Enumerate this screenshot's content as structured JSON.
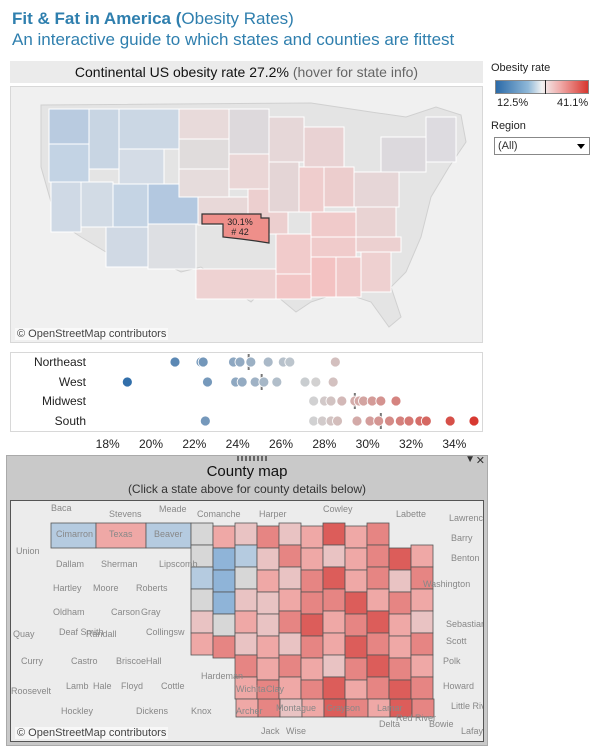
{
  "header": {
    "title_bold": "Fit & Fat in America (",
    "title_rest": "Obesity Rates)",
    "subtitle": "An interactive guide to which states and counties are fittest"
  },
  "banner": {
    "text": "Continental US obesity rate 27.2%",
    "hint": "(hover for state info)"
  },
  "us_map": {
    "tooltip_rate": "30.1%",
    "tooltip_rank": "# 42",
    "credit": "© OpenStreetMap contributors"
  },
  "legend": {
    "title": "Obesity rate",
    "min": "12.5%",
    "max": "41.1%"
  },
  "region_filter": {
    "label": "Region",
    "selected": "(All)"
  },
  "colors": {
    "low": "#2b6aa8",
    "mid": "#d8d8d8",
    "high": "#d7372f",
    "accent": "#2f7fae"
  },
  "chart_data": {
    "type": "scatter",
    "categories": [
      "Northeast",
      "West",
      "Midwest",
      "South"
    ],
    "xlim": [
      17,
      35
    ],
    "x_ticks": [
      "18%",
      "20%",
      "22%",
      "24%",
      "26%",
      "28%",
      "30%",
      "32%",
      "34%"
    ],
    "series": [
      {
        "name": "Northeast",
        "values": [
          20.6,
          21.8,
          21.9,
          23.3,
          23.6,
          24.1,
          24.9,
          25.6,
          25.9,
          28.0
        ],
        "avg": 24.0
      },
      {
        "name": "West",
        "values": [
          18.4,
          22.1,
          23.4,
          23.7,
          24.3,
          24.7,
          25.3,
          26.6,
          27.1,
          27.9
        ],
        "avg": 24.6
      },
      {
        "name": "Midwest",
        "values": [
          27.0,
          27.5,
          27.8,
          28.3,
          28.9,
          29.1,
          29.3,
          29.7,
          30.1,
          30.8
        ],
        "avg": 28.9
      },
      {
        "name": "South",
        "values": [
          22.0,
          27.0,
          27.4,
          27.8,
          28.1,
          29.0,
          29.6,
          30.0,
          30.5,
          31.0,
          31.4,
          31.9,
          32.2,
          33.3,
          34.4
        ],
        "avg": 30.1
      }
    ]
  },
  "county_panel": {
    "title": "County map",
    "subtitle": "(Click a state above for county details below)",
    "credit": "© OpenStreetMap contributors",
    "towns": [
      "Baca",
      "Stevens",
      "Meade",
      "Comanche",
      "Harper",
      "Cowley",
      "Labette",
      "Lawrence",
      "Union",
      "Cimarron",
      "Texas",
      "Beaver",
      "Dallam",
      "Sherman",
      "Lipscomb",
      "Barry",
      "Hartley",
      "Moore",
      "Roberts",
      "Benton",
      "Oldham",
      "Carson",
      "Gray",
      "Quay",
      "Deaf Smith",
      "Randall",
      "Collingsw",
      "Curry",
      "Castro",
      "Briscoe",
      "Hall",
      "Lamb",
      "Hale",
      "Floyd",
      "Cottle",
      "Hardeman",
      "Wichita",
      "Clay",
      "Montague",
      "Grayson",
      "Lamar",
      "Red River",
      "Bowie",
      "Roosevelt",
      "Hockley",
      "Dickens",
      "Knox",
      "Archer",
      "Jack",
      "Wise",
      "Delta",
      "Howard",
      "Polk",
      "Sebastian",
      "Scott",
      "Washington",
      "Little River",
      "Lafay"
    ]
  }
}
